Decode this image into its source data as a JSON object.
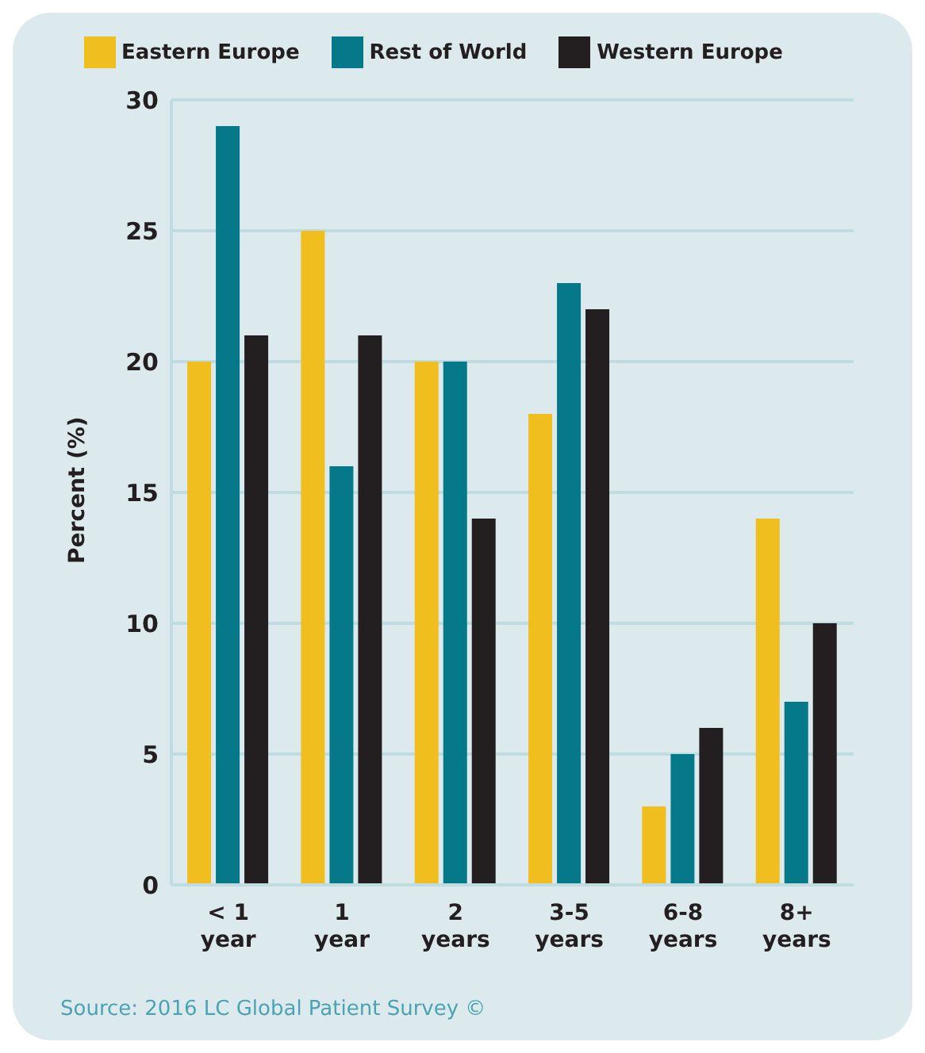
{
  "chart_data": {
    "type": "bar",
    "ylabel": "Percent (%)",
    "categories": [
      "< 1 year",
      "1 year",
      "2 years",
      "3-5 years",
      "6-8 years",
      "8+ years"
    ],
    "series": [
      {
        "name": "Eastern Europe",
        "color": "#f0be1e",
        "values": [
          20,
          25,
          20,
          18,
          3,
          14
        ]
      },
      {
        "name": "Rest of World",
        "color": "#05788a",
        "values": [
          29,
          16,
          20,
          23,
          5,
          7
        ]
      },
      {
        "name": "Western Europe",
        "color": "#231f20",
        "values": [
          21,
          21,
          14,
          22,
          6,
          10
        ]
      }
    ],
    "ylim": [
      0,
      30
    ],
    "yticks": [
      0,
      5,
      10,
      15,
      20,
      25,
      30
    ],
    "grid": "y",
    "legend": "top",
    "annotations": [
      "Source: 2016 LC Global Patient Survey ©"
    ]
  }
}
